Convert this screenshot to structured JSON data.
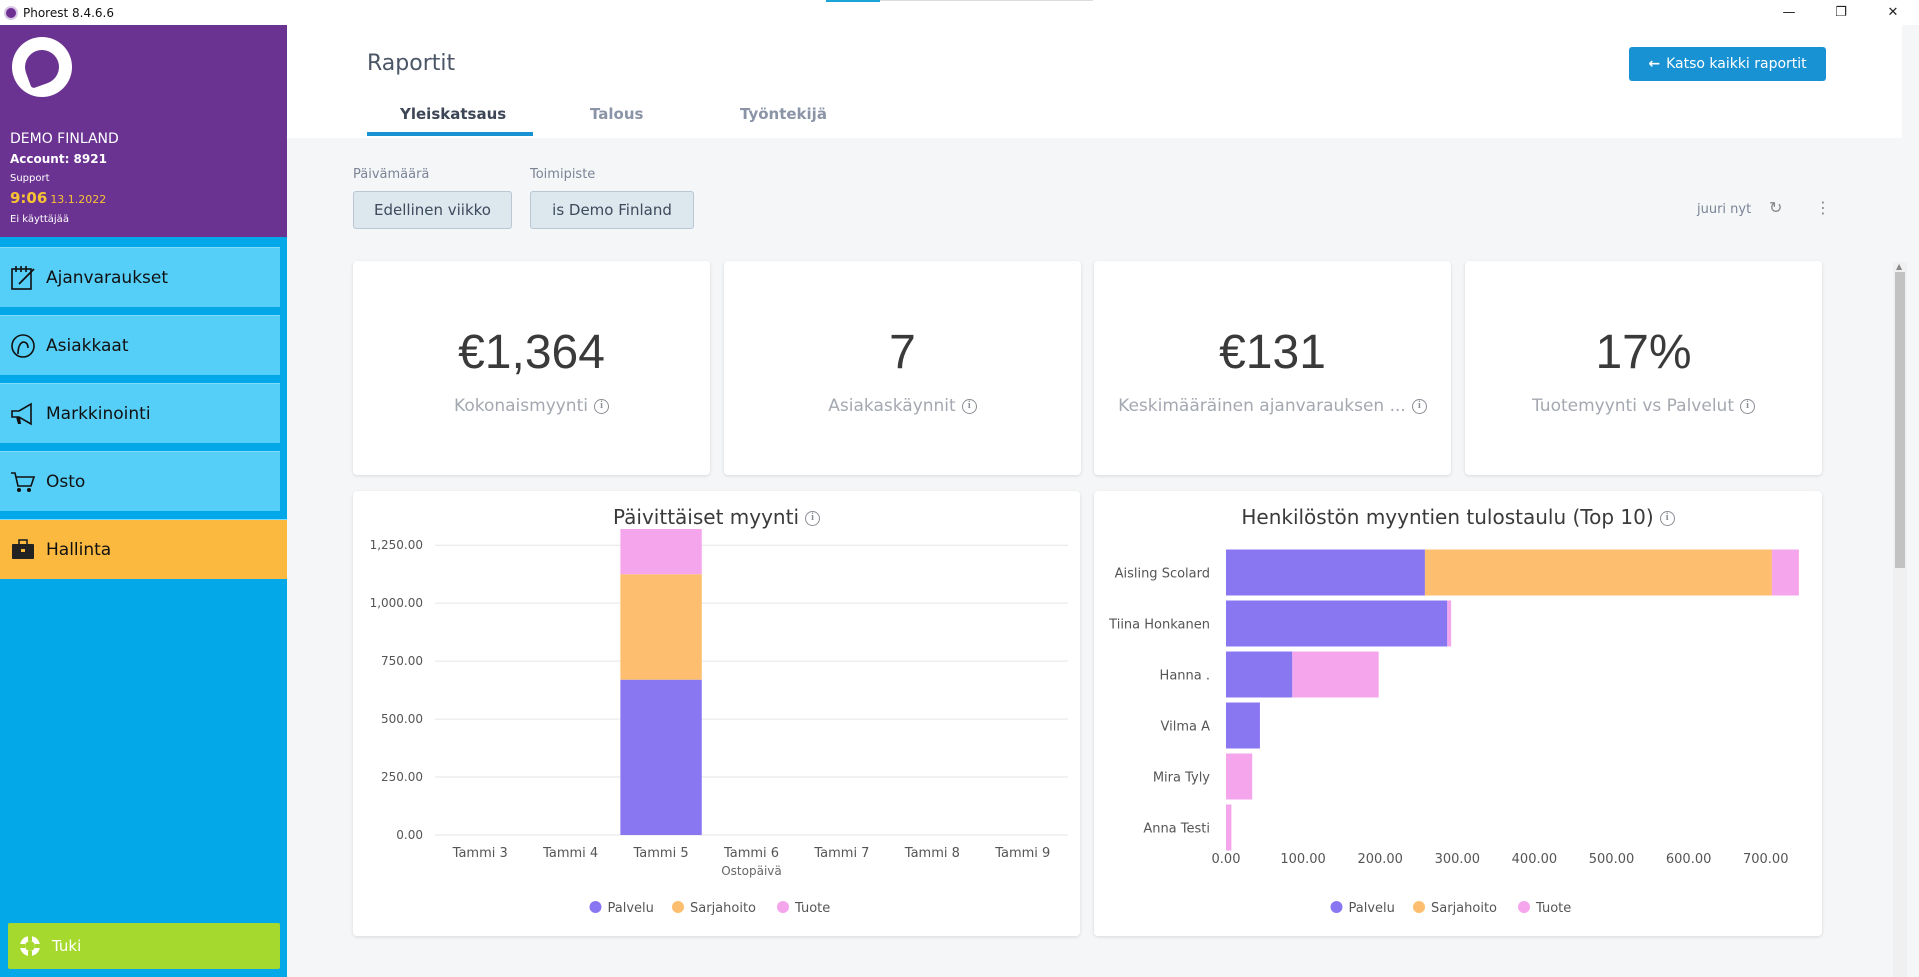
{
  "window": {
    "title": "Phorest 8.4.6.6",
    "controls": [
      "—",
      "❐",
      "✕"
    ]
  },
  "account": {
    "name": "DEMO FINLAND",
    "number": "Account: 8921",
    "role": "Support",
    "time": "9:06",
    "date": "13.1.2022",
    "user": "Ei käyttäjää"
  },
  "sidebar": {
    "items": [
      {
        "label": "Ajanvaraukset",
        "icon": "calendar-edit-icon"
      },
      {
        "label": "Asiakkaat",
        "icon": "client-head-icon"
      },
      {
        "label": "Markkinointi",
        "icon": "megaphone-icon"
      },
      {
        "label": "Osto",
        "icon": "cart-icon"
      },
      {
        "label": "Hallinta",
        "icon": "briefcase-icon"
      }
    ],
    "support": {
      "label": "Tuki",
      "icon": "lifebuoy-icon"
    },
    "colors": {
      "nav": "#55cef8",
      "active": "#fbb940",
      "support": "#a6d92e",
      "head": "#6b3391"
    }
  },
  "header": {
    "title": "Raportit",
    "view_all": "Katso kaikki raportit",
    "tabs": [
      "Yleiskatsaus",
      "Talous",
      "Työntekijä"
    ]
  },
  "filters": {
    "date_label": "Päivämäärä",
    "date_value": "Edellinen viikko",
    "location_label": "Toimipiste",
    "location_value": "is Demo Finland",
    "refreshed": "juuri nyt"
  },
  "kpis": [
    {
      "value": "€1,364",
      "label": "Kokonaismyynti"
    },
    {
      "value": "7",
      "label": "Asiakaskäynnit"
    },
    {
      "value": "€131",
      "label": "Keskimääräinen ajanvarauksen ..."
    },
    {
      "value": "17%",
      "label": "Tuotemyynti vs Palvelut"
    }
  ],
  "chart_data": [
    {
      "type": "bar",
      "stacked": true,
      "title": "Päivittäiset myynti",
      "xlabel": "Ostopäivä",
      "ylabel": "",
      "categories": [
        "Tammi 3",
        "Tammi 4",
        "Tammi 5",
        "Tammi 6",
        "Tammi 7",
        "Tammi 8",
        "Tammi 9"
      ],
      "series": [
        {
          "name": "Palvelu",
          "color": "#8977f2",
          "values": [
            0,
            0,
            670,
            0,
            0,
            0,
            0
          ]
        },
        {
          "name": "Sarjahoito",
          "color": "#fdbf6f",
          "values": [
            0,
            0,
            455,
            0,
            0,
            0,
            0
          ]
        },
        {
          "name": "Tuote",
          "color": "#f5a5ec",
          "values": [
            0,
            0,
            195,
            0,
            0,
            0,
            0
          ]
        }
      ],
      "ylim": [
        0,
        1320
      ],
      "yticks": [
        "0.00",
        "250.00",
        "500.00",
        "750.00",
        "1,000.00",
        "1,250.00"
      ],
      "ytick_values": [
        0,
        250,
        500,
        750,
        1000,
        1250
      ],
      "grid": true,
      "legend": "bottom"
    },
    {
      "type": "bar",
      "orientation": "horizontal",
      "stacked": true,
      "title": "Henkilöstön myyntien tulostaulu (Top 10)",
      "categories": [
        "Aisling Scolard",
        "Tiina Honkanen",
        "Hanna .",
        "Vilma A",
        "Mira Tyly",
        "Anna Testi"
      ],
      "series": [
        {
          "name": "Palvelu",
          "color": "#8977f2",
          "values": [
            258,
            287,
            86,
            44,
            0,
            0
          ]
        },
        {
          "name": "Sarjahoito",
          "color": "#fdbf6f",
          "values": [
            450,
            0,
            0,
            0,
            0,
            0
          ]
        },
        {
          "name": "Tuote",
          "color": "#f5a5ec",
          "values": [
            35,
            5,
            112,
            0,
            34,
            7
          ]
        }
      ],
      "xlim": [
        0,
        760
      ],
      "xticks": [
        "0.00",
        "100.00",
        "200.00",
        "300.00",
        "400.00",
        "500.00",
        "600.00",
        "700.00"
      ],
      "xtick_values": [
        0,
        100,
        200,
        300,
        400,
        500,
        600,
        700
      ],
      "legend": "bottom"
    }
  ]
}
